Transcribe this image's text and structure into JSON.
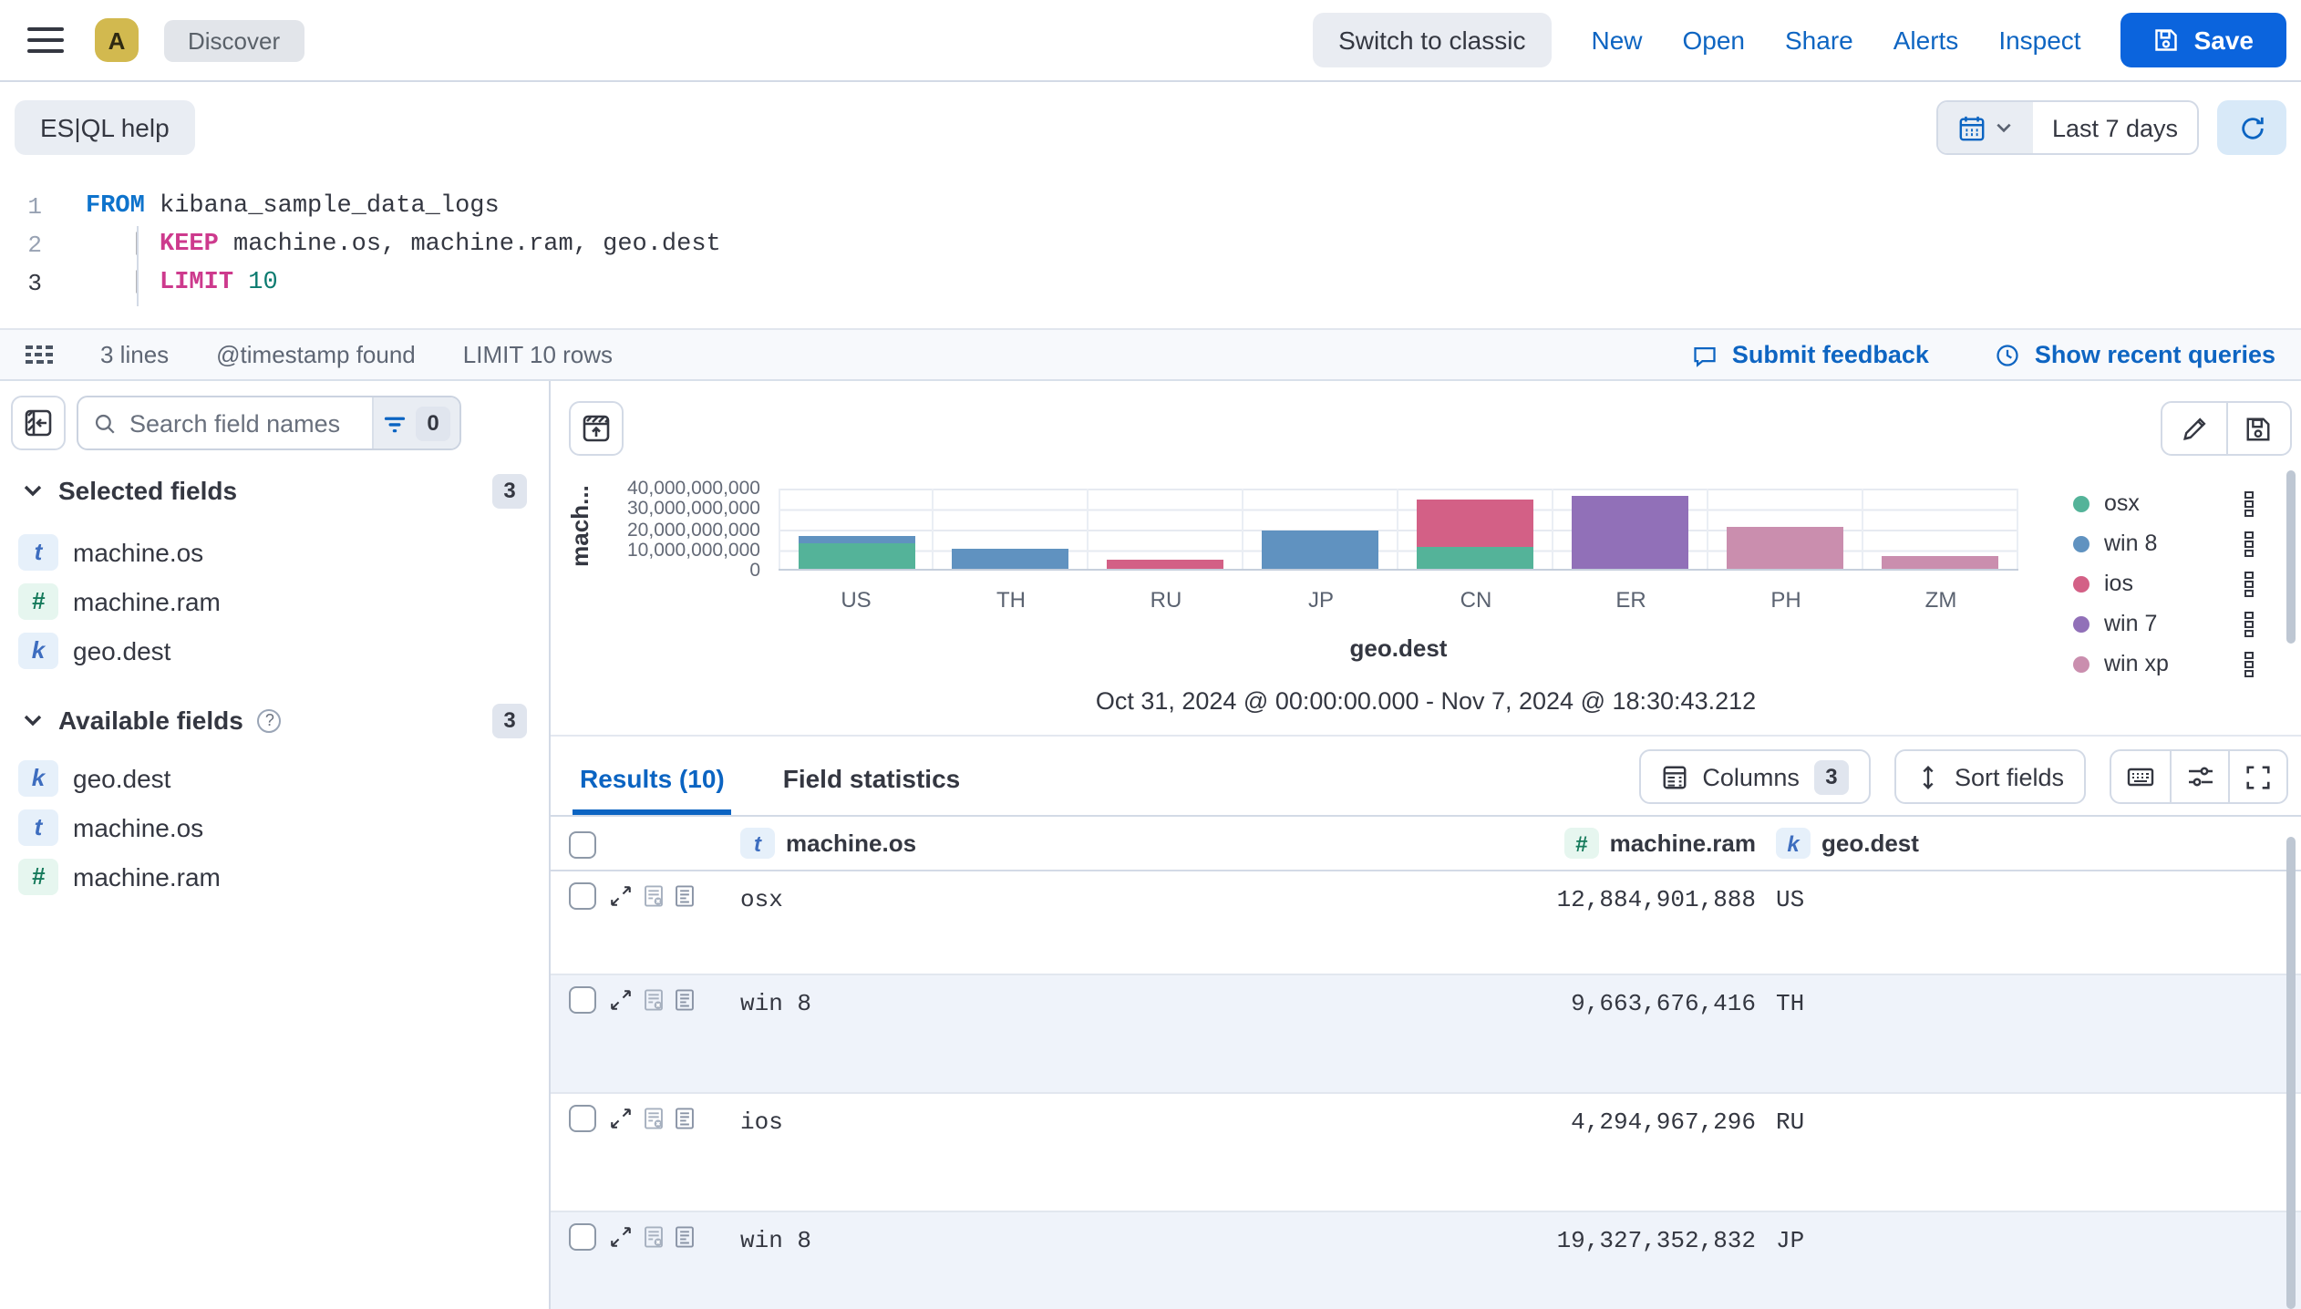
{
  "header": {
    "space_avatar": "A",
    "breadcrumb": "Discover",
    "switch_to_classic_label": "Switch to classic",
    "nav_items": [
      "New",
      "Open",
      "Share",
      "Alerts",
      "Inspect"
    ],
    "save_label": "Save"
  },
  "query_bar": {
    "esql_help_label": "ES|QL help",
    "time_range_label": "Last 7 days"
  },
  "editor": {
    "lines": [
      {
        "num": "1",
        "pre": "",
        "kw": "FROM",
        "rest": " kibana_sample_data_logs",
        "val": ""
      },
      {
        "num": "2",
        "pre": "   | ",
        "kw": "KEEP",
        "rest": " machine.os, machine.ram, geo.dest",
        "val": ""
      },
      {
        "num": "3",
        "pre": "   | ",
        "kw": "LIMIT",
        "rest": " ",
        "val": "10"
      }
    ]
  },
  "status_bar": {
    "lines_info": "3 lines",
    "timestamp_info": "@timestamp found",
    "limit_info": "LIMIT 10 rows",
    "feedback_label": "Submit feedback",
    "recent_queries_label": "Show recent queries"
  },
  "sidebar": {
    "search_placeholder": "Search field names",
    "filter_count": "0",
    "selected": {
      "label": "Selected fields",
      "count": "3",
      "fields": [
        {
          "type": "t",
          "name": "machine.os"
        },
        {
          "type": "#",
          "name": "machine.ram"
        },
        {
          "type": "k",
          "name": "geo.dest"
        }
      ]
    },
    "available": {
      "label": "Available fields",
      "count": "3",
      "fields": [
        {
          "type": "k",
          "name": "geo.dest"
        },
        {
          "type": "t",
          "name": "machine.os"
        },
        {
          "type": "#",
          "name": "machine.ram"
        }
      ]
    }
  },
  "chart_data": {
    "type": "bar",
    "stacked": true,
    "title": "geo.dest",
    "xlabel": "geo.dest",
    "ylabel": "mach...",
    "time_range": "Oct 31, 2024 @ 00:00:00.000 - Nov 7, 2024 @ 18:30:43.212",
    "categories": [
      "US",
      "TH",
      "RU",
      "JP",
      "CN",
      "ER",
      "PH",
      "ZM"
    ],
    "series": [
      {
        "name": "osx",
        "color": "#54B399",
        "values_billions": [
          12.9,
          0,
          0,
          0,
          11,
          0,
          0,
          0
        ]
      },
      {
        "name": "win 8",
        "color": "#6092C0",
        "values_billions": [
          3.2,
          9.7,
          0,
          19.3,
          0,
          0,
          0,
          0
        ]
      },
      {
        "name": "ios",
        "color": "#D36086",
        "values_billions": [
          0,
          0,
          4.3,
          0,
          24,
          0,
          0,
          0
        ]
      },
      {
        "name": "win 7",
        "color": "#9170B8",
        "values_billions": [
          0,
          0,
          0,
          0,
          0,
          36.5,
          0,
          0
        ]
      },
      {
        "name": "win xp",
        "color": "#CA8EAE",
        "values_billions": [
          0,
          0,
          0,
          0,
          0,
          0,
          20.5,
          6.4
        ]
      }
    ],
    "ylim_billions": [
      0,
      40
    ],
    "ytick_labels": [
      "40,000,000,000",
      "30,000,000,000",
      "20,000,000,000",
      "10,000,000,000",
      "0"
    ],
    "grid": true,
    "legend_position": "right"
  },
  "results": {
    "tabs": [
      {
        "label": "Results (10)"
      },
      {
        "label": "Field statistics"
      }
    ],
    "toolbar": {
      "columns_label": "Columns",
      "columns_count": "3",
      "sort_label": "Sort fields"
    },
    "table": {
      "headers": [
        {
          "type": "t",
          "name": "machine.os"
        },
        {
          "type": "#",
          "name": "machine.ram"
        },
        {
          "type": "k",
          "name": "geo.dest"
        }
      ],
      "rows": [
        {
          "machine_os": "osx",
          "machine_ram": "12,884,901,888",
          "geo_dest": "US"
        },
        {
          "machine_os": "win 8",
          "machine_ram": "9,663,676,416",
          "geo_dest": "TH"
        },
        {
          "machine_os": "ios",
          "machine_ram": "4,294,967,296",
          "geo_dest": "RU"
        },
        {
          "machine_os": "win 8",
          "machine_ram": "19,327,352,832",
          "geo_dest": "JP"
        }
      ]
    }
  }
}
